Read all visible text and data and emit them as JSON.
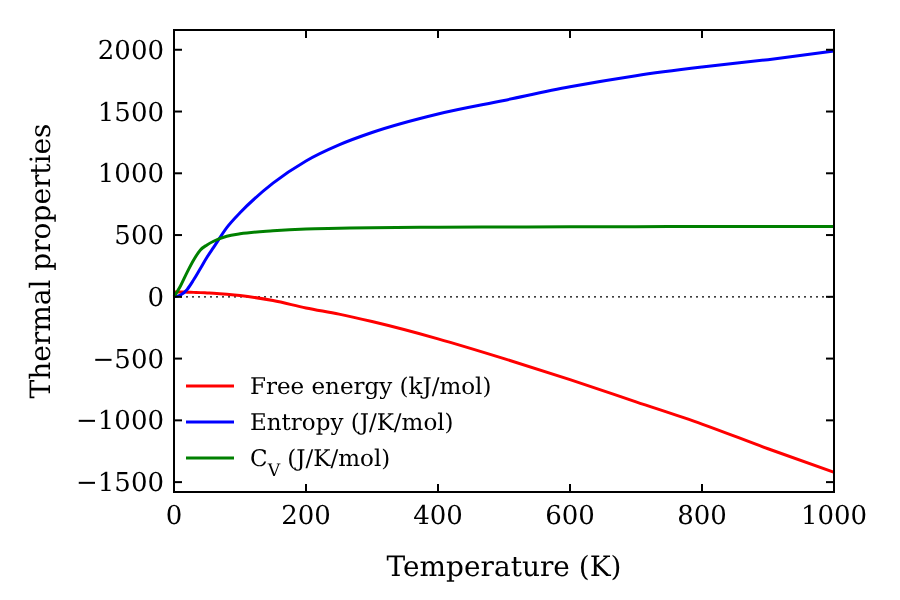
{
  "chart_data": {
    "type": "line",
    "xlabel": "Temperature (K)",
    "ylabel": "Thermal properties",
    "xlim": [
      0,
      1000
    ],
    "ylim": [
      -1580,
      2160
    ],
    "xticks": [
      0,
      200,
      400,
      600,
      800,
      1000
    ],
    "yticks": [
      -1500,
      -1000,
      -500,
      0,
      500,
      1000,
      1500,
      2000
    ],
    "legend": "bottom left",
    "ref_lines": [
      {
        "axis": "y",
        "value": 0,
        "color": "#000000",
        "line_style": "dotted"
      }
    ],
    "x": [
      0,
      10,
      20,
      30,
      40,
      50,
      60,
      80,
      100,
      150,
      200,
      250,
      300,
      400,
      500,
      600,
      700,
      800,
      900,
      1000
    ],
    "series": [
      {
        "name": "Free energy (kJ/mol)",
        "color": "#ff0000",
        "values": [
          40,
          40,
          38,
          36,
          34,
          31,
          28,
          20,
          10,
          -30,
          -90,
          -140,
          -200,
          -340,
          -500,
          -670,
          -850,
          -1030,
          -1230,
          -1420
        ]
      },
      {
        "name": "Entropy (J/K/mol)",
        "color": "#0000ff",
        "values": [
          0,
          15,
          60,
          140,
          230,
          320,
          400,
          560,
          680,
          920,
          1100,
          1230,
          1330,
          1480,
          1590,
          1700,
          1790,
          1860,
          1920,
          1990
        ]
      },
      {
        "name": "C$_{V}$ (J/K/mol)",
        "color": "#008000",
        "values": [
          0,
          90,
          200,
          300,
          380,
          420,
          450,
          490,
          510,
          535,
          550,
          555,
          560,
          563,
          565,
          567,
          568,
          569,
          570,
          570
        ]
      }
    ]
  }
}
